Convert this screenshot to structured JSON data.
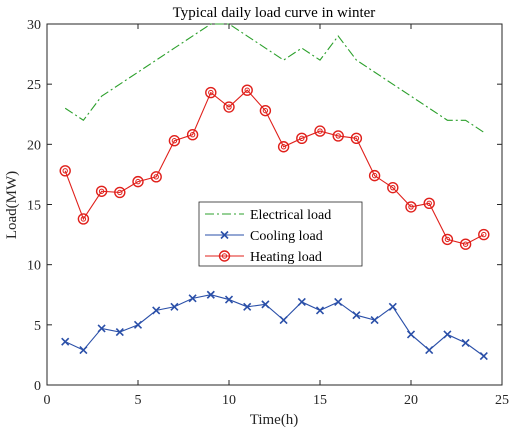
{
  "chart_data": {
    "type": "line",
    "title": "Typical daily load curve in winter",
    "xlabel": "Time(h)",
    "ylabel": "Load(MW)",
    "xlim": [
      0,
      25
    ],
    "ylim": [
      0,
      30
    ],
    "xticks": [
      0,
      5,
      10,
      15,
      20,
      25
    ],
    "yticks": [
      0,
      5,
      10,
      15,
      20,
      25,
      30
    ],
    "grid": false,
    "legend_position": "center",
    "x": [
      1,
      2,
      3,
      4,
      5,
      6,
      7,
      8,
      9,
      10,
      11,
      12,
      13,
      14,
      15,
      16,
      17,
      18,
      19,
      20,
      21,
      22,
      23,
      24
    ],
    "series": [
      {
        "name": "Electrical load",
        "color": "#2ca02c",
        "line_style": "dash-dot",
        "marker": "none",
        "values": [
          23,
          22,
          24,
          25,
          26,
          27,
          28,
          29,
          30,
          30,
          29,
          28,
          27,
          28,
          27,
          29,
          27,
          26,
          25,
          24,
          23,
          22,
          22,
          21
        ]
      },
      {
        "name": "Cooling load",
        "color": "#2a4fa8",
        "line_style": "solid",
        "marker": "x",
        "values": [
          3.6,
          2.9,
          4.7,
          4.4,
          5.0,
          6.2,
          6.5,
          7.2,
          7.5,
          7.1,
          6.5,
          6.7,
          5.4,
          6.9,
          6.2,
          6.9,
          5.8,
          5.4,
          6.5,
          4.2,
          2.9,
          4.2,
          3.5,
          2.4
        ]
      },
      {
        "name": "Heating load",
        "color": "#e0201b",
        "line_style": "solid",
        "marker": "circle",
        "values": [
          17.8,
          13.8,
          16.1,
          16.0,
          16.9,
          17.3,
          20.3,
          20.8,
          24.3,
          23.1,
          24.5,
          22.8,
          19.8,
          20.5,
          21.1,
          20.7,
          20.5,
          17.4,
          16.4,
          14.8,
          15.1,
          12.1,
          11.7,
          12.5
        ]
      }
    ]
  }
}
